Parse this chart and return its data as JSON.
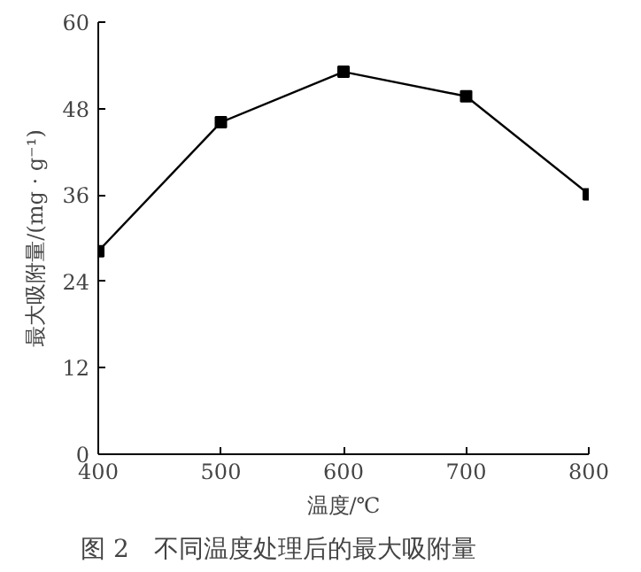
{
  "chart_data": {
    "type": "line",
    "xlabel": "温度/℃",
    "ylabel": "最大吸附量/(mg · g⁻¹)",
    "x": [
      400,
      500,
      600,
      700,
      800
    ],
    "series": [
      {
        "color": "#000000",
        "values": [
          28.2,
          46.1,
          53.1,
          49.7,
          36.1
        ]
      }
    ],
    "xlim": [
      400,
      800
    ],
    "xticks": [
      400,
      500,
      600,
      700,
      800
    ],
    "ylim": [
      0,
      60
    ],
    "yticks": [
      0,
      12,
      24,
      36,
      48,
      60
    ],
    "marker": "square",
    "line_style": "solid",
    "grid": false,
    "annotations": [
      "图 2　不同温度处理后的最大吸附量"
    ]
  }
}
